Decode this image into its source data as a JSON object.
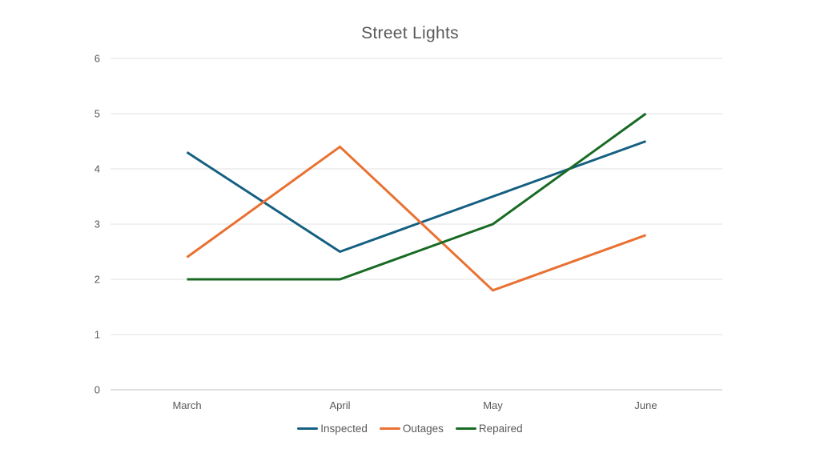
{
  "chart_data": {
    "type": "line",
    "title": "Street Lights",
    "categories": [
      "March",
      "April",
      "May",
      "June"
    ],
    "series": [
      {
        "name": "Inspected",
        "color": "#156082",
        "values": [
          4.3,
          2.5,
          3.5,
          4.5
        ]
      },
      {
        "name": "Outages",
        "color": "#E97132",
        "values": [
          2.4,
          4.4,
          1.8,
          2.8
        ]
      },
      {
        "name": "Repaired",
        "color": "#196B24",
        "values": [
          2.0,
          2.0,
          3.0,
          5.0
        ]
      }
    ],
    "xlabel": "",
    "ylabel": "",
    "ylim": [
      0,
      6
    ],
    "ytick_step": 1,
    "grid": true,
    "legend_position": "bottom"
  },
  "colors": {
    "background": "#FFFFFF",
    "title_text": "#595959",
    "tick_text": "#595959",
    "gridline": "#E8E8E8",
    "axis_line": "#D6D6D6"
  }
}
